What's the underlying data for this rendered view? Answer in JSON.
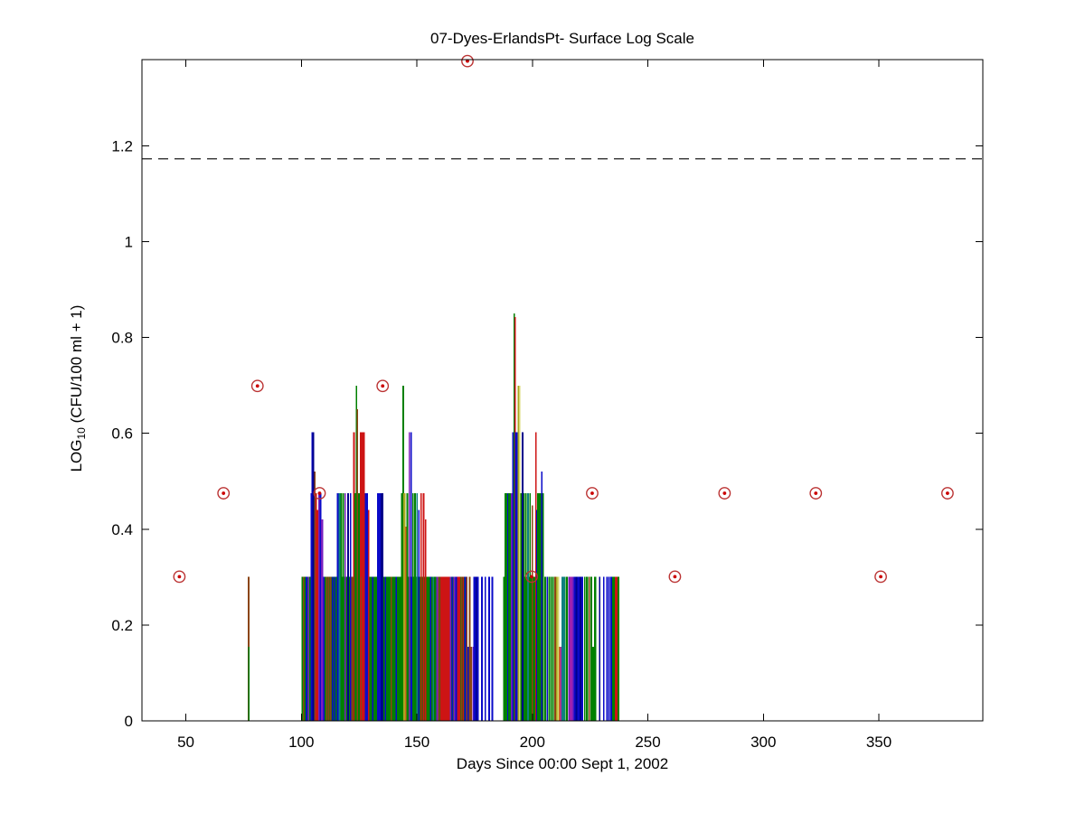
{
  "figure": {
    "title": "07-Dyes-ErlandsPt- Surface Log Scale",
    "xlabel": "Days Since 00:00 Sept 1, 2002",
    "ylabel_prefix": "LOG",
    "ylabel_sub": "10",
    "ylabel_suffix": " (CFU/100 ml + 1)"
  },
  "chart_data": {
    "type": "stem",
    "title": "07-Dyes-ErlandsPt- Surface Log Scale",
    "xlabel": "Days Since 00:00 Sept 1, 2002",
    "ylabel": "LOG_10 (CFU/100 ml + 1)",
    "xlim": [
      31,
      395
    ],
    "ylim": [
      0,
      1.38
    ],
    "xticks": [
      50,
      100,
      150,
      200,
      250,
      300,
      350
    ],
    "xtick_labels": [
      "50",
      "100",
      "150",
      "200",
      "250",
      "300",
      "350"
    ],
    "yticks": [
      0,
      0.2,
      0.4,
      0.6,
      0.8,
      1.0,
      1.2
    ],
    "ytick_labels": [
      "0",
      "0.2",
      "0.4",
      "0.6",
      "0.8",
      "1",
      "1.2"
    ],
    "grid": false,
    "legend": null,
    "threshold_line": {
      "y": 1.173,
      "style": "dashed",
      "color": "#000000"
    },
    "colors": {
      "green": "#008000",
      "blue": "#0a0ac8",
      "navy": "#00008b",
      "red": "#cd1414",
      "brown": "#8b4513",
      "purple": "#7a1fbe",
      "magenta": "#aa22aa",
      "olive": "#a8a820",
      "yellow": "#d8d870",
      "teal": "#0f8080",
      "orange": "#d2691e"
    },
    "marker_style": {
      "shape": "circle-dot",
      "ring_color": "#bb3333",
      "dot_color": "#cc0000",
      "ring_radius": 6.2,
      "dot_radius": 1.9
    },
    "markers": [
      [
        47.2,
        0.301
      ],
      [
        66.3,
        0.475
      ],
      [
        81.0,
        0.699
      ],
      [
        107.9,
        0.475
      ],
      [
        135.2,
        0.699
      ],
      [
        171.9,
        1.377
      ],
      [
        199.7,
        0.301
      ],
      [
        225.9,
        0.475
      ],
      [
        261.7,
        0.301
      ],
      [
        283.2,
        0.475
      ],
      [
        322.7,
        0.475
      ],
      [
        350.8,
        0.301
      ],
      [
        379.7,
        0.475
      ]
    ],
    "bands": [
      {
        "from": 100.0,
        "to": 171.3,
        "value": 0.301,
        "color": "green"
      },
      {
        "from": 188.2,
        "to": 204.9,
        "value": 0.301,
        "color": "green"
      }
    ],
    "stems": [
      [
        77.2,
        0.301,
        "brown"
      ],
      [
        77.3,
        0.155,
        "green"
      ],
      [
        101.0,
        0.301,
        "brown"
      ],
      [
        102.2,
        0.301,
        "blue"
      ],
      [
        103.1,
        0.301,
        "purple"
      ],
      [
        104.4,
        0.475,
        "blue",
        2.5
      ],
      [
        104.7,
        0.602,
        "blue"
      ],
      [
        105.2,
        0.602,
        "navy"
      ],
      [
        105.8,
        0.52,
        "brown"
      ],
      [
        106.5,
        0.475,
        "red"
      ],
      [
        107.0,
        0.44,
        "red"
      ],
      [
        107.6,
        0.475,
        "purple"
      ],
      [
        108.3,
        0.475,
        "blue"
      ],
      [
        108.9,
        0.42,
        "purple",
        2.5
      ],
      [
        109.8,
        0.301,
        "blue"
      ],
      [
        110.9,
        0.301,
        "brown"
      ],
      [
        111.7,
        0.301,
        "brown"
      ],
      [
        112.6,
        0.301,
        "brown"
      ],
      [
        113.5,
        0.301,
        "blue"
      ],
      [
        114.5,
        0.301,
        "blue"
      ],
      [
        115.7,
        0.475,
        "blue"
      ],
      [
        116.5,
        0.475,
        "teal"
      ],
      [
        117.2,
        0.475,
        "green"
      ],
      [
        118.1,
        0.475,
        "green"
      ],
      [
        119.0,
        0.475,
        "purple"
      ],
      [
        120.2,
        0.475,
        "navy"
      ],
      [
        121.3,
        0.475,
        "blue"
      ],
      [
        121.9,
        0.301,
        "brown"
      ],
      [
        122.8,
        0.602,
        "red"
      ],
      [
        123.6,
        0.475,
        "green",
        3
      ],
      [
        123.9,
        0.699,
        "green"
      ],
      [
        124.3,
        0.65,
        "brown"
      ],
      [
        125.1,
        0.475,
        "green",
        3
      ],
      [
        125.7,
        0.602,
        "red"
      ],
      [
        126.0,
        0.301,
        "brown"
      ],
      [
        126.4,
        0.602,
        "red"
      ],
      [
        127.1,
        0.602,
        "red"
      ],
      [
        127.9,
        0.475,
        "blue"
      ],
      [
        128.6,
        0.475,
        "blue"
      ],
      [
        129.2,
        0.44,
        "red"
      ],
      [
        130.9,
        0.301,
        "blue"
      ],
      [
        133.3,
        0.475,
        "blue",
        3
      ],
      [
        134.2,
        0.475,
        "blue"
      ],
      [
        135.0,
        0.475,
        "navy",
        3
      ],
      [
        136.4,
        0.301,
        "blue"
      ],
      [
        138.9,
        0.301,
        "brown"
      ],
      [
        141.1,
        0.301,
        "blue"
      ],
      [
        143.4,
        0.475,
        "green"
      ],
      [
        144.1,
        0.699,
        "green"
      ],
      [
        144.7,
        0.475,
        "olive",
        2.5
      ],
      [
        145.2,
        0.405,
        "orange"
      ],
      [
        145.9,
        0.475,
        "green"
      ],
      [
        146.8,
        0.602,
        "purple"
      ],
      [
        147.5,
        0.602,
        "blue"
      ],
      [
        147.9,
        0.301,
        "blue"
      ],
      [
        148.3,
        0.475,
        "green"
      ],
      [
        149.2,
        0.475,
        "green"
      ],
      [
        150.1,
        0.475,
        "teal"
      ],
      [
        150.9,
        0.44,
        "blue"
      ],
      [
        151.8,
        0.475,
        "red"
      ],
      [
        152.9,
        0.475,
        "red"
      ],
      [
        153.8,
        0.42,
        "red"
      ],
      [
        155.9,
        0.301,
        "blue"
      ],
      [
        157.1,
        0.301,
        "teal"
      ],
      [
        158.0,
        0.301,
        "green"
      ],
      [
        158.8,
        0.301,
        "purple"
      ],
      [
        159.6,
        0.301,
        "brown"
      ],
      [
        160.6,
        0.301,
        "red",
        2.5
      ],
      [
        161.5,
        0.301,
        "red",
        2.5
      ],
      [
        162.3,
        0.301,
        "red",
        2.5
      ],
      [
        163.1,
        0.301,
        "red",
        2.5
      ],
      [
        163.9,
        0.301,
        "red"
      ],
      [
        164.6,
        0.301,
        "purple"
      ],
      [
        165.4,
        0.301,
        "blue"
      ],
      [
        166.2,
        0.301,
        "purple"
      ],
      [
        167.0,
        0.301,
        "blue"
      ],
      [
        167.8,
        0.301,
        "red"
      ],
      [
        168.5,
        0.301,
        "red"
      ],
      [
        169.3,
        0.301,
        "brown"
      ],
      [
        170.1,
        0.301,
        "red"
      ],
      [
        170.9,
        0.301,
        "blue"
      ],
      [
        171.6,
        0.301,
        "brown"
      ],
      [
        172.3,
        0.155,
        "blue"
      ],
      [
        172.9,
        0.301,
        "brown"
      ],
      [
        173.6,
        0.155,
        "brown"
      ],
      [
        174.3,
        0.155,
        "purple"
      ],
      [
        175.0,
        0.301,
        "blue",
        2.5
      ],
      [
        175.7,
        0.301,
        "navy"
      ],
      [
        176.4,
        0.301,
        "blue"
      ],
      [
        178.2,
        0.301,
        "blue"
      ],
      [
        179.6,
        0.301,
        "blue"
      ],
      [
        181.3,
        0.301,
        "blue"
      ],
      [
        182.7,
        0.301,
        "blue"
      ],
      [
        187.6,
        0.301,
        "green"
      ],
      [
        188.6,
        0.475,
        "green",
        3
      ],
      [
        189.4,
        0.475,
        "blue"
      ],
      [
        190.2,
        0.475,
        "green",
        3
      ],
      [
        191.0,
        0.475,
        "purple"
      ],
      [
        191.7,
        0.602,
        "blue"
      ],
      [
        192.1,
        0.85,
        "green"
      ],
      [
        192.5,
        0.843,
        "red"
      ],
      [
        193.0,
        0.602,
        "blue",
        2.5
      ],
      [
        193.6,
        0.602,
        "blue"
      ],
      [
        194.0,
        0.699,
        "olive"
      ],
      [
        194.5,
        0.699,
        "yellow"
      ],
      [
        195.2,
        0.475,
        "green"
      ],
      [
        195.8,
        0.602,
        "navy"
      ],
      [
        196.5,
        0.475,
        "green"
      ],
      [
        197.3,
        0.475,
        "green"
      ],
      [
        198.1,
        0.475,
        "teal"
      ],
      [
        199.0,
        0.475,
        "green"
      ],
      [
        200.0,
        0.45,
        "brown"
      ],
      [
        201.5,
        0.602,
        "red"
      ],
      [
        202.0,
        0.44,
        "blue"
      ],
      [
        202.6,
        0.475,
        "green",
        3
      ],
      [
        203.4,
        0.475,
        "green"
      ],
      [
        204.1,
        0.52,
        "blue"
      ],
      [
        204.7,
        0.475,
        "green"
      ],
      [
        205.6,
        0.301,
        "green"
      ],
      [
        206.4,
        0.301,
        "blue"
      ],
      [
        207.2,
        0.301,
        "green"
      ],
      [
        208.1,
        0.301,
        "green"
      ],
      [
        209.0,
        0.301,
        "green"
      ],
      [
        209.9,
        0.301,
        "brown"
      ],
      [
        210.6,
        0.301,
        "olive"
      ],
      [
        211.2,
        0.301,
        "yellow"
      ],
      [
        211.8,
        0.155,
        "orange"
      ],
      [
        212.4,
        0.155,
        "magenta"
      ],
      [
        213.0,
        0.301,
        "teal"
      ],
      [
        213.8,
        0.301,
        "teal"
      ],
      [
        214.8,
        0.301,
        "green",
        2.5
      ],
      [
        215.9,
        0.301,
        "purple"
      ],
      [
        216.7,
        0.301,
        "magenta"
      ],
      [
        217.5,
        0.301,
        "purple"
      ],
      [
        218.3,
        0.301,
        "blue"
      ],
      [
        219.1,
        0.301,
        "navy"
      ],
      [
        219.9,
        0.301,
        "blue",
        2.5
      ],
      [
        220.8,
        0.301,
        "navy"
      ],
      [
        221.6,
        0.301,
        "blue"
      ],
      [
        222.7,
        0.301,
        "green"
      ],
      [
        223.6,
        0.301,
        "green",
        2.5
      ],
      [
        224.7,
        0.301,
        "brown"
      ],
      [
        225.5,
        0.301,
        "green"
      ],
      [
        226.3,
        0.155,
        "green"
      ],
      [
        227.2,
        0.301,
        "green",
        2.5
      ],
      [
        229.1,
        0.301,
        "navy"
      ],
      [
        230.9,
        0.301,
        "blue"
      ],
      [
        232.4,
        0.301,
        "blue"
      ],
      [
        233.3,
        0.301,
        "blue"
      ],
      [
        234.1,
        0.301,
        "blue"
      ],
      [
        234.9,
        0.301,
        "green"
      ],
      [
        235.6,
        0.301,
        "green"
      ],
      [
        236.1,
        0.301,
        "red",
        2.5
      ],
      [
        236.7,
        0.301,
        "red"
      ],
      [
        237.2,
        0.301,
        "green",
        2
      ]
    ]
  }
}
